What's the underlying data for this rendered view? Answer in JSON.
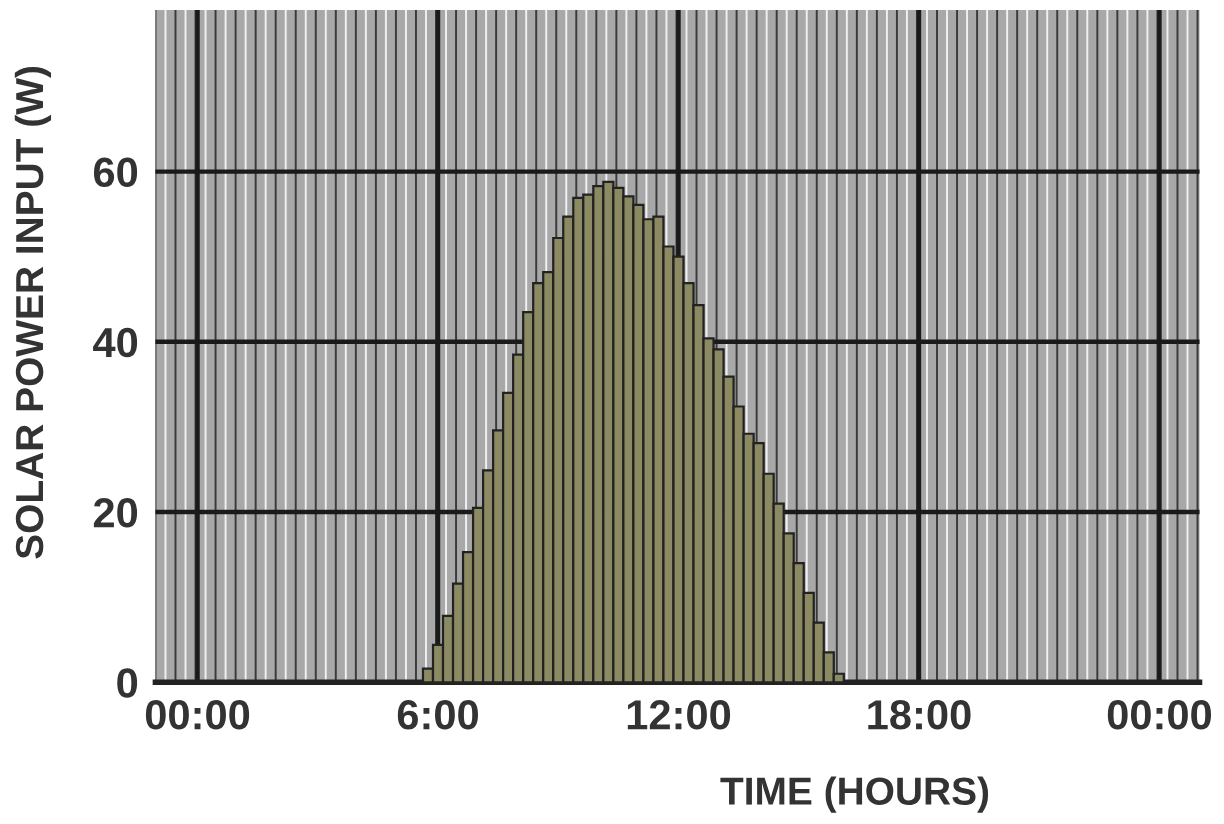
{
  "chart_data": {
    "type": "bar",
    "xlabel": "TIME (HOURS)",
    "ylabel": "SOLAR POWER INPUT (W)",
    "x": [
      5.75,
      6.0,
      6.25,
      6.5,
      6.75,
      7.0,
      7.25,
      7.5,
      7.75,
      8.0,
      8.25,
      8.5,
      8.75,
      9.0,
      9.25,
      9.5,
      9.75,
      10.0,
      10.25,
      10.5,
      10.75,
      11.0,
      11.25,
      11.5,
      11.75,
      12.0,
      12.25,
      12.5,
      12.75,
      13.0,
      13.25,
      13.5,
      13.75,
      14.0,
      14.25,
      14.5,
      14.75,
      15.0,
      15.25,
      15.5,
      15.75,
      16.0
    ],
    "values": [
      1.6,
      4.4,
      7.8,
      11.6,
      15.3,
      20.5,
      24.9,
      29.6,
      34.0,
      38.5,
      43.5,
      46.9,
      48.2,
      52.2,
      54.7,
      56.9,
      57.3,
      58.3,
      58.8,
      58.1,
      57.1,
      56.1,
      54.4,
      54.7,
      51.2,
      50.0,
      46.9,
      44.3,
      40.4,
      39.1,
      35.9,
      32.4,
      29.2,
      28.1,
      24.5,
      21.0,
      17.5,
      14.0,
      10.5,
      7.0,
      3.5,
      1.0
    ],
    "color": "#8c8a62",
    "xlim": [
      -1.05,
      25.0
    ],
    "ylim": [
      0,
      79
    ],
    "xticks": [
      {
        "value": 0,
        "label": "00:00"
      },
      {
        "value": 6,
        "label": "6:00"
      },
      {
        "value": 12,
        "label": "12:00"
      },
      {
        "value": 18,
        "label": "18:00"
      },
      {
        "value": 24,
        "label": "00:00"
      }
    ],
    "yticks": [
      0,
      20,
      40,
      60
    ],
    "grid": true
  }
}
